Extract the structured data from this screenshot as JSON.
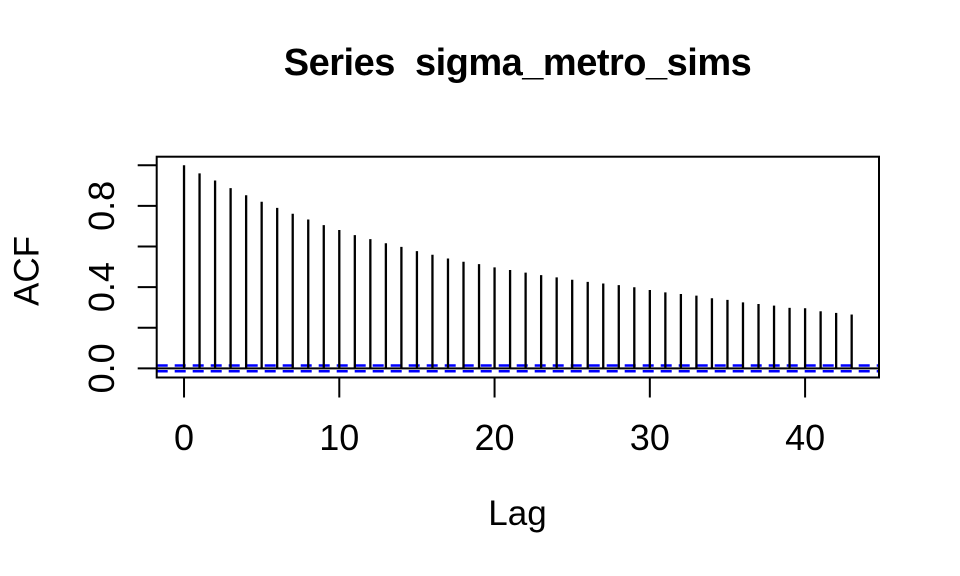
{
  "title": "Series  sigma_metro_sims",
  "chart_data": {
    "type": "bar",
    "subtype": "acf-spike-plot",
    "title": "Series  sigma_metro_sims",
    "xlabel": "Lag",
    "ylabel": "ACF",
    "x": [
      0,
      1,
      2,
      3,
      4,
      5,
      6,
      7,
      8,
      9,
      10,
      11,
      12,
      13,
      14,
      15,
      16,
      17,
      18,
      19,
      20,
      21,
      22,
      23,
      24,
      25,
      26,
      27,
      28,
      29,
      30,
      31,
      32,
      33,
      34,
      35,
      36,
      37,
      38,
      39,
      40,
      41,
      42,
      43
    ],
    "values": [
      1.0,
      0.96,
      0.925,
      0.887,
      0.852,
      0.82,
      0.79,
      0.761,
      0.733,
      0.705,
      0.681,
      0.656,
      0.636,
      0.616,
      0.598,
      0.577,
      0.559,
      0.541,
      0.525,
      0.513,
      0.497,
      0.484,
      0.471,
      0.459,
      0.448,
      0.436,
      0.426,
      0.418,
      0.41,
      0.399,
      0.386,
      0.374,
      0.366,
      0.358,
      0.345,
      0.337,
      0.325,
      0.317,
      0.309,
      0.298,
      0.296,
      0.281,
      0.273,
      0.265
    ],
    "xticks": [
      0,
      10,
      20,
      30,
      40
    ],
    "xtick_labels": [
      "0",
      "10",
      "20",
      "30",
      "40"
    ],
    "yticks": [
      0.0,
      0.2,
      0.4,
      0.6,
      0.8,
      1.0
    ],
    "ytick_labels": [
      "0.0",
      "",
      "0.4",
      "",
      "0.8",
      ""
    ],
    "xlim": [
      -1.76,
      44.76
    ],
    "ylim": [
      -0.045,
      1.042
    ],
    "confidence_bounds": [
      0.014,
      -0.014
    ],
    "zero_line": 0,
    "grid": false,
    "legend": "none",
    "colors": {
      "spike": "#000000",
      "confidence": "#0000FF",
      "axis": "#000000",
      "background": "#FFFFFF"
    }
  }
}
